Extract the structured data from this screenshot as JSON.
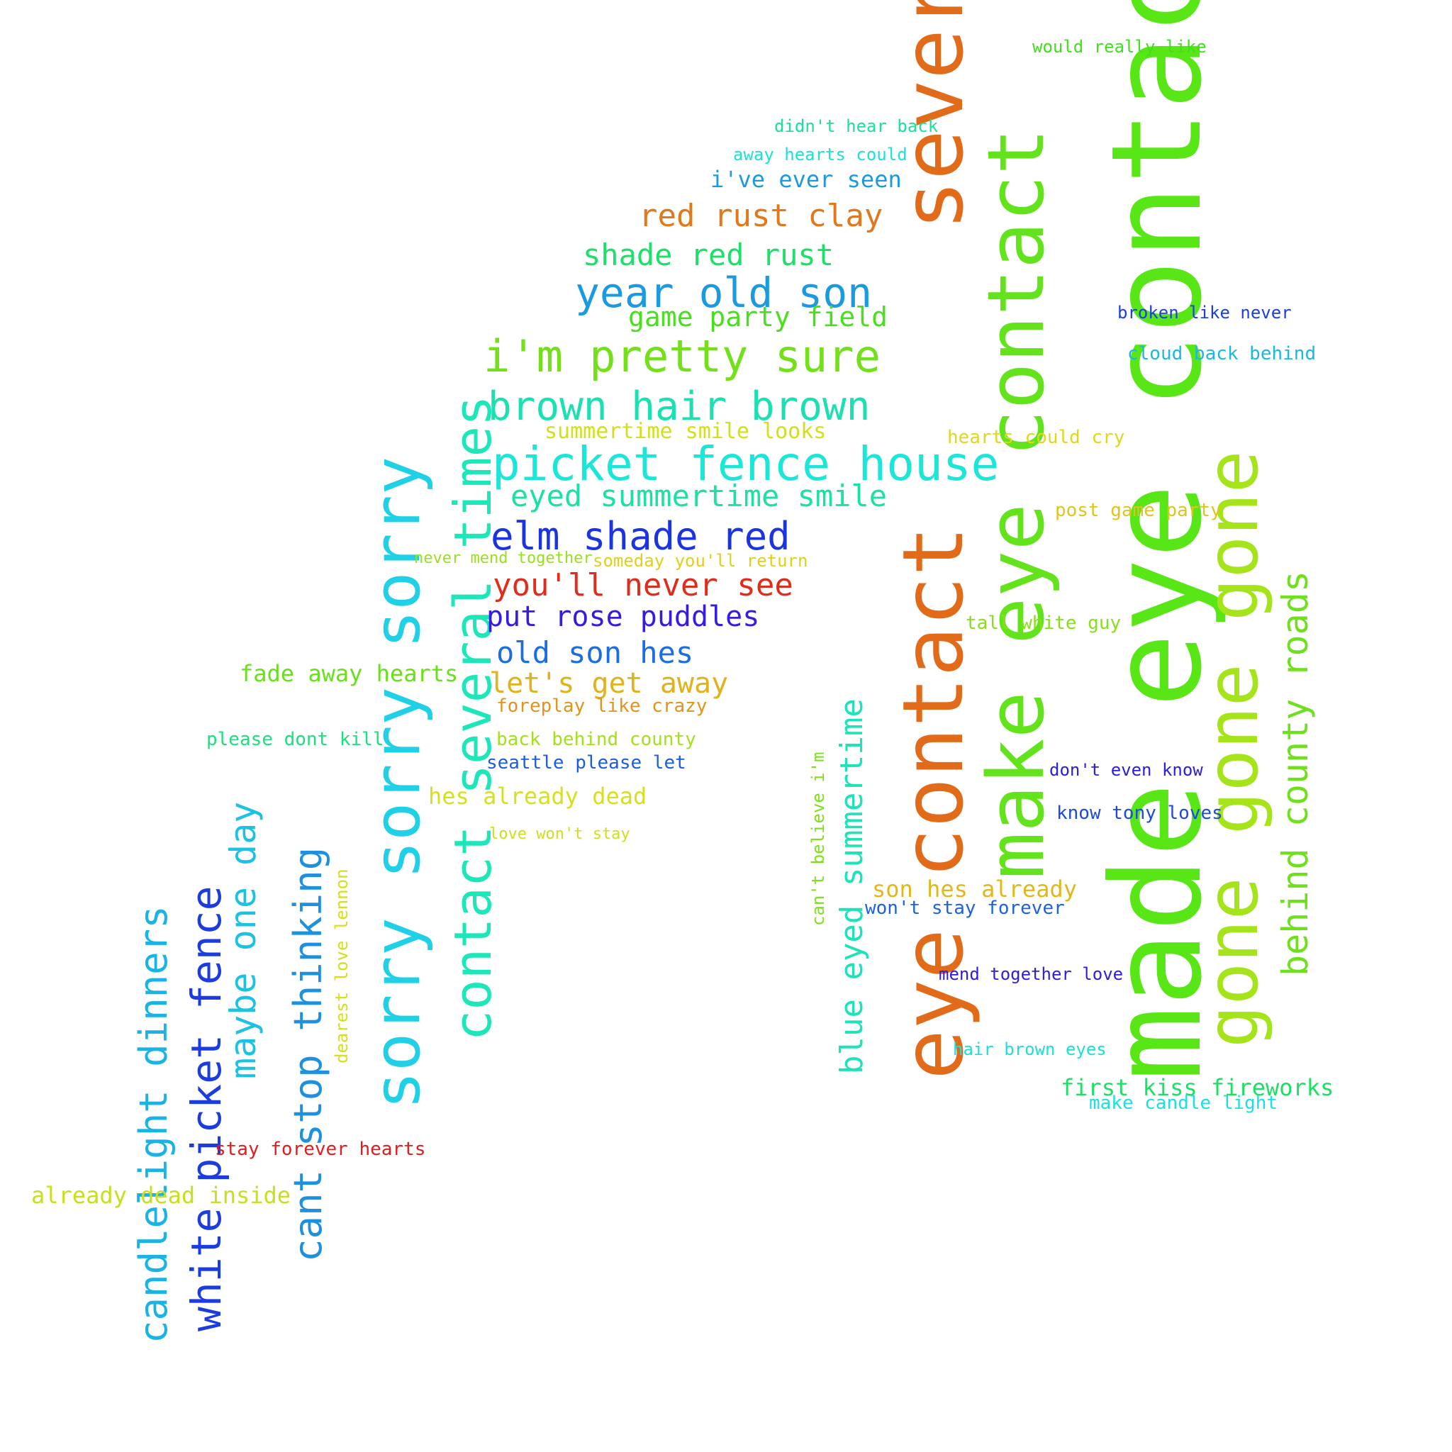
{
  "words": [
    {
      "text": "made eye contact",
      "color": "#58e617",
      "vertical": true
    },
    {
      "text": "several",
      "color": "#e26b1a",
      "vertical": true
    },
    {
      "text": "eye contact",
      "color": "#e26b1a",
      "vertical": true
    },
    {
      "text": "make eye contact",
      "color": "#62e31c",
      "vertical": true
    },
    {
      "text": "gone gone gone",
      "color": "#a5e41a",
      "vertical": true
    },
    {
      "text": "sorry sorry sorry",
      "color": "#1fd0e6",
      "vertical": true
    },
    {
      "text": "contact several times",
      "color": "#1de6b8",
      "vertical": true
    },
    {
      "text": "behind county roads",
      "color": "#6ee01c",
      "vertical": true
    },
    {
      "text": "blue eyed summertime",
      "color": "#1ee2b8",
      "vertical": true
    },
    {
      "text": "candlelight dinners",
      "color": "#1ab3e6",
      "vertical": true
    },
    {
      "text": "white picket fence",
      "color": "#1c3ce0",
      "vertical": true
    },
    {
      "text": "maybe one day",
      "color": "#1cc2e2",
      "vertical": true
    },
    {
      "text": "cant stop thinking",
      "color": "#1e90e0",
      "vertical": true
    },
    {
      "text": "dearest love lennon",
      "color": "#d4e01c",
      "vertical": true
    },
    {
      "text": "can't believe i'm",
      "color": "#7ee01c",
      "vertical": true
    },
    {
      "text": "would really like",
      "color": "#41e01c"
    },
    {
      "text": "didn't hear back",
      "color": "#1ce099"
    },
    {
      "text": "away hearts could",
      "color": "#1ee0d4"
    },
    {
      "text": "i've ever seen",
      "color": "#1c9ae0"
    },
    {
      "text": "red rust clay",
      "color": "#e2781c"
    },
    {
      "text": "shade red rust",
      "color": "#1ce06a"
    },
    {
      "text": "year old son",
      "color": "#1c9ae0"
    },
    {
      "text": "game party field",
      "color": "#48e01c"
    },
    {
      "text": "i'm pretty sure",
      "color": "#74e01c"
    },
    {
      "text": "brown hair brown",
      "color": "#1ce0b2"
    },
    {
      "text": "summertime smile looks",
      "color": "#d2e01c"
    },
    {
      "text": "picket fence house",
      "color": "#1ce6d8"
    },
    {
      "text": "eyed summertime smile",
      "color": "#1ce0a6"
    },
    {
      "text": "elm shade red",
      "color": "#1c34e0"
    },
    {
      "text": "never mend together",
      "color": "#98e01c"
    },
    {
      "text": "someday you'll return",
      "color": "#e0d01c"
    },
    {
      "text": "you'll never see",
      "color": "#e02c1c"
    },
    {
      "text": "put rose puddles",
      "color": "#361ce0"
    },
    {
      "text": "old son hes",
      "color": "#1c6ee0"
    },
    {
      "text": "let's get away",
      "color": "#e0b21c"
    },
    {
      "text": "fade away hearts",
      "color": "#68e01c"
    },
    {
      "text": "foreplay like crazy",
      "color": "#e0941c"
    },
    {
      "text": "please dont kill",
      "color": "#1ce07e"
    },
    {
      "text": "back behind county",
      "color": "#a4e01c"
    },
    {
      "text": "seattle please let",
      "color": "#1c5ce0"
    },
    {
      "text": "hes already dead",
      "color": "#d6e01c"
    },
    {
      "text": "love won't stay",
      "color": "#cce01c"
    },
    {
      "text": "broken like never",
      "color": "#1c3ee0"
    },
    {
      "text": "cloud back behind",
      "color": "#1cb8e0"
    },
    {
      "text": "hearts could cry",
      "color": "#e0d81c"
    },
    {
      "text": "post game party",
      "color": "#e0c41c"
    },
    {
      "text": "tall white guy",
      "color": "#86e01c"
    },
    {
      "text": "don't even know",
      "color": "#2a1ce0"
    },
    {
      "text": "know tony loves",
      "color": "#1c4ae0"
    },
    {
      "text": "son hes already",
      "color": "#e0b81c"
    },
    {
      "text": "won't stay forever",
      "color": "#1c62e0"
    },
    {
      "text": "mend together love",
      "color": "#301ce0"
    },
    {
      "text": "hair brown eyes",
      "color": "#1ce0d8"
    },
    {
      "text": "first kiss fireworks",
      "color": "#1ce064"
    },
    {
      "text": "make candle light",
      "color": "#1ce0e0"
    },
    {
      "text": "stay forever hearts",
      "color": "#e01c1c"
    },
    {
      "text": "already dead inside",
      "color": "#c8e01c"
    }
  ]
}
